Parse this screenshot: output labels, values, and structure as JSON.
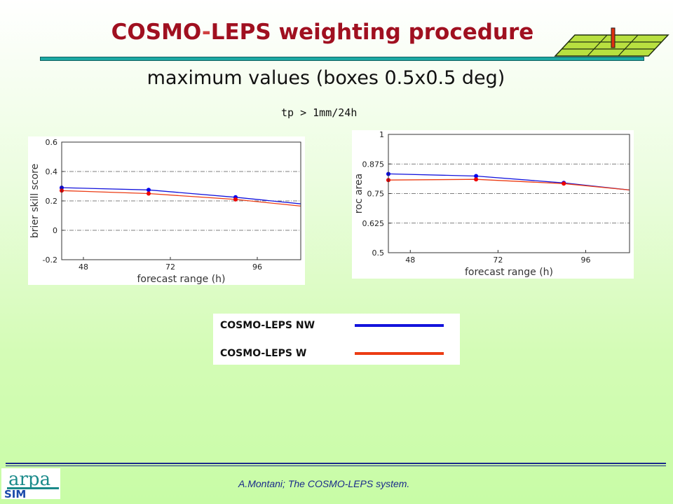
{
  "slide": {
    "title_part1": "COSMO",
    "title_dash": "-",
    "title_part2": "LEPS weighting procedure",
    "subtitle": "maximum values (boxes 0.5x0.5 deg)",
    "threshold": "tp > 1mm/24h",
    "footer": "A.Montani; The COSMO-LEPS system.",
    "logo_text_top": "arpa",
    "logo_text_bottom": "SIM"
  },
  "colors": {
    "title": "#a01020",
    "rule": "#1ba9a3",
    "nw": "#1414dc",
    "w": "#ec3c14",
    "nw_marker": "#0000ee",
    "w_marker": "#ee0000"
  },
  "legend": {
    "items": [
      {
        "label": "COSMO-LEPS NW",
        "color": "#1414dc"
      },
      {
        "label": "COSMO-LEPS W",
        "color": "#ec3c14"
      }
    ]
  },
  "chart_data": [
    {
      "type": "line",
      "xlabel": "forecast range (h)",
      "ylabel": "brier skill score",
      "xticks": [
        48,
        72,
        96
      ],
      "yticks": [
        "-0.2",
        "0",
        "0.2",
        "0.4",
        "0.6"
      ],
      "xlim": [
        42,
        108
      ],
      "ylim": [
        -0.2,
        0.6
      ],
      "grid": "dash-dot horizontal",
      "series": [
        {
          "name": "COSMO-LEPS NW",
          "x": [
            42,
            66,
            90,
            108
          ],
          "y": [
            0.29,
            0.275,
            0.225,
            0.18
          ],
          "markers_x": [
            42,
            66,
            90
          ]
        },
        {
          "name": "COSMO-LEPS W",
          "x": [
            42,
            66,
            90,
            108
          ],
          "y": [
            0.27,
            0.25,
            0.21,
            0.165
          ],
          "markers_x": [
            42,
            66,
            90
          ]
        }
      ]
    },
    {
      "type": "line",
      "xlabel": "forecast range (h)",
      "ylabel": "roc area",
      "xticks": [
        48,
        72,
        96
      ],
      "yticks": [
        "0.5",
        "0.625",
        "0.75",
        "0.875",
        "1"
      ],
      "xlim": [
        42,
        108
      ],
      "ylim": [
        0.5,
        1
      ],
      "grid": "dash-dot horizontal",
      "series": [
        {
          "name": "COSMO-LEPS NW",
          "x": [
            42,
            66,
            90,
            108
          ],
          "y": [
            0.833,
            0.824,
            0.795,
            0.765
          ],
          "markers_x": [
            42,
            66,
            90
          ]
        },
        {
          "name": "COSMO-LEPS W",
          "x": [
            42,
            66,
            90,
            108
          ],
          "y": [
            0.807,
            0.81,
            0.792,
            0.765
          ],
          "markers_x": [
            42,
            66,
            90
          ]
        }
      ]
    }
  ]
}
